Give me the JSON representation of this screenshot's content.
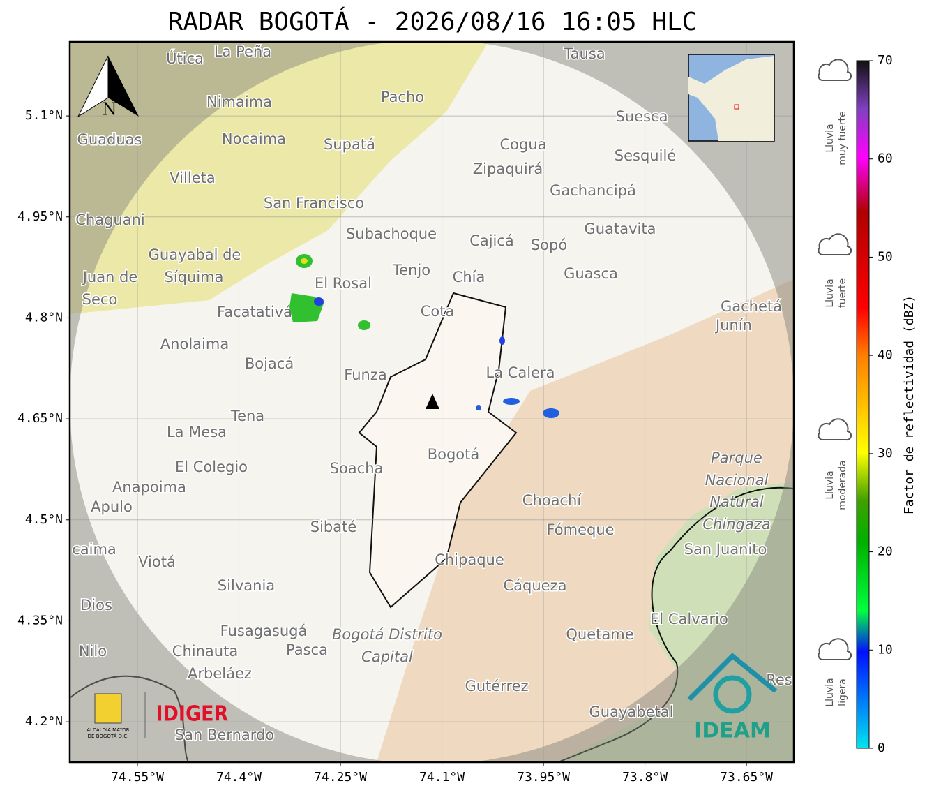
{
  "title": "RADAR BOGOTÁ - 2026/08/16 16:05 HLC",
  "map": {
    "xlim": [
      -74.65,
      -73.58
    ],
    "ylim": [
      4.14,
      5.21
    ],
    "xticks": [
      {
        "value": -74.55,
        "label": "74.55°W"
      },
      {
        "value": -74.4,
        "label": "74.4°W"
      },
      {
        "value": -74.25,
        "label": "74.25°W"
      },
      {
        "value": -74.1,
        "label": "74.1°W"
      },
      {
        "value": -73.95,
        "label": "73.95°W"
      },
      {
        "value": -73.8,
        "label": "73.8°W"
      },
      {
        "value": -73.65,
        "label": "73.65°W"
      }
    ],
    "yticks": [
      {
        "value": 5.1,
        "label": "5.1°N"
      },
      {
        "value": 4.95,
        "label": "4.95°N"
      },
      {
        "value": 4.8,
        "label": "4.8°N"
      },
      {
        "value": 4.65,
        "label": "4.65°N"
      },
      {
        "value": 4.5,
        "label": "4.5°N"
      },
      {
        "value": 4.35,
        "label": "4.35°N"
      },
      {
        "value": 4.2,
        "label": "4.2°N"
      }
    ],
    "grid": true,
    "north": "N",
    "places": [
      "La Peña",
      "Útica",
      "Tausa",
      "Pacho",
      "Nimaima",
      "Suesca",
      "Guaduas",
      "Nocaima",
      "Supatá",
      "Cogua",
      "Sesquilé",
      "Zipaquirá",
      "Villeta",
      "Gachancipá",
      "San Francisco",
      "Chaguani",
      "Guatavita",
      "Subachoque",
      "Cajicá",
      "Sopó",
      "Guayabal de",
      "Síquima",
      "Tenjo",
      "Juan de",
      "Chía",
      "Guasca",
      "El Rosal",
      "Seco",
      "Cota",
      "Gachetá",
      "Facatativá",
      "Junín",
      "Anolaima",
      "Bojacá",
      "Funza",
      "La Calera",
      "Tena",
      "La Mesa",
      "El Colegio",
      "Soacha",
      "Bogotá",
      "Parque",
      "Nacional",
      "Natural",
      "Chingaza",
      "Anapoima",
      "Apulo",
      "Choachí",
      "Fómeque",
      "Sibaté",
      "San Juanito",
      "caima",
      "Viotá",
      "Chipaque",
      "Silvania",
      "Cáqueza",
      "Dios",
      "El Calvario",
      "Fusagasugá",
      "Bogotá Distrito",
      "Capital",
      "Quetame",
      "Nilo",
      "Chinauta",
      "Pasca",
      "Arbeláez",
      "Gutérrez",
      "Res",
      "Guayabetal",
      "San Bernardo"
    ]
  },
  "colorbar": {
    "label": "Factor de reflectividad (dBZ)",
    "lim": [
      0,
      70
    ],
    "ticks": [
      0,
      10,
      20,
      30,
      40,
      50,
      60,
      70
    ]
  },
  "rain_categories": [
    [
      "Lluvia",
      "ligera"
    ],
    [
      "Lluvia",
      "moderada"
    ],
    [
      "Lluvia",
      "fuerte"
    ],
    [
      "Lluvia",
      "muy fuerte"
    ]
  ],
  "logos": {
    "alcaldia": [
      "ALCALDÍA MAYOR",
      "DE BOGOTÁ D.C."
    ],
    "idiger": "IDIGER",
    "ideam": "IDEAM"
  }
}
